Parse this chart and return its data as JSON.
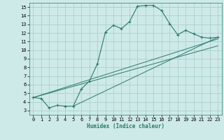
{
  "xlabel": "Humidex (Indice chaleur)",
  "bg_color": "#ceeae8",
  "grid_color": "#aad0cc",
  "line_color": "#2a7a6a",
  "xlim": [
    -0.5,
    23.5
  ],
  "ylim": [
    2.5,
    15.5
  ],
  "xticks": [
    0,
    1,
    2,
    3,
    4,
    5,
    6,
    7,
    8,
    9,
    10,
    11,
    12,
    13,
    14,
    15,
    16,
    17,
    18,
    19,
    20,
    21,
    22,
    23
  ],
  "yticks": [
    3,
    4,
    5,
    6,
    7,
    8,
    9,
    10,
    11,
    12,
    13,
    14,
    15
  ],
  "main_x": [
    0,
    1,
    2,
    3,
    4,
    5,
    6,
    7,
    8,
    9,
    10,
    11,
    12,
    13,
    14,
    15,
    16,
    17,
    18,
    19,
    20,
    21,
    22,
    23
  ],
  "main_y": [
    4.5,
    4.4,
    3.3,
    3.6,
    3.5,
    3.5,
    5.5,
    6.4,
    8.4,
    12.1,
    12.9,
    12.5,
    13.3,
    15.1,
    15.2,
    15.2,
    14.6,
    13.1,
    11.8,
    12.3,
    11.9,
    11.5,
    11.4,
    11.5
  ],
  "line1_x": [
    0,
    23
  ],
  "line1_y": [
    4.5,
    11.3
  ],
  "line2_x": [
    0,
    23
  ],
  "line2_y": [
    4.5,
    10.5
  ],
  "line3_x": [
    5,
    23
  ],
  "line3_y": [
    3.5,
    11.5
  ]
}
